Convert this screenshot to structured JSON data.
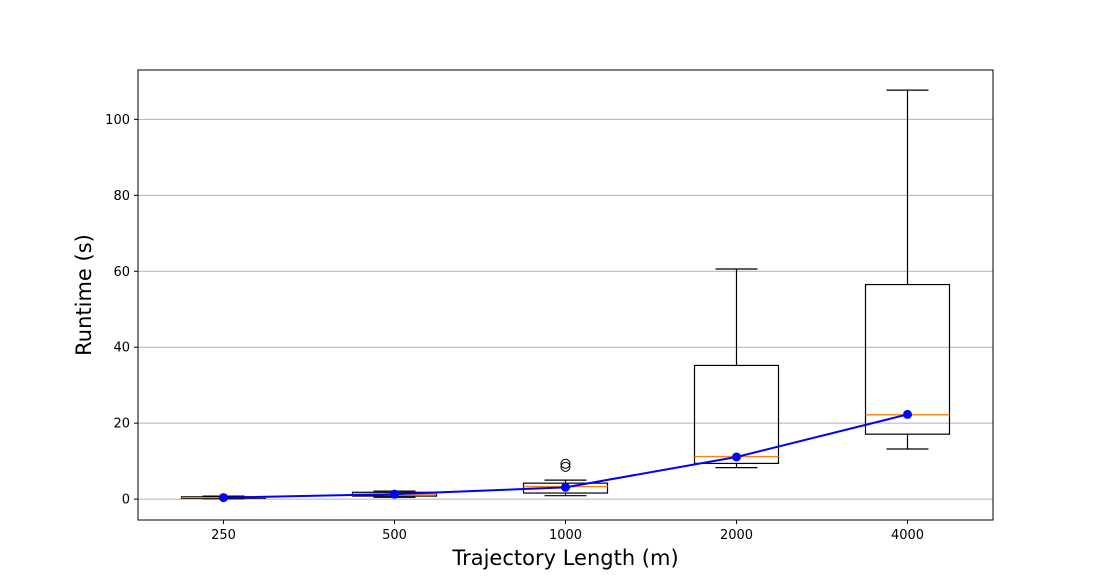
{
  "chart_data": {
    "type": "box",
    "xlabel": "Trajectory Length (m)",
    "ylabel": "Runtime (s)",
    "categories": [
      "250",
      "500",
      "1000",
      "2000",
      "4000"
    ],
    "ylim": [
      -5.5,
      113
    ],
    "yticks": [
      0,
      20,
      40,
      60,
      80,
      100
    ],
    "grid": "y",
    "boxes": [
      {
        "category": "250",
        "whislo": 0.1,
        "q1": 0.2,
        "median": 0.4,
        "q3": 0.6,
        "whishi": 0.8,
        "fliers": []
      },
      {
        "category": "500",
        "whislo": 0.5,
        "q1": 0.8,
        "median": 1.3,
        "q3": 1.8,
        "whishi": 2.1,
        "fliers": []
      },
      {
        "category": "1000",
        "whislo": 0.9,
        "q1": 1.6,
        "median": 3.3,
        "q3": 4.2,
        "whishi": 5.0,
        "fliers": [
          8.5,
          9.3
        ]
      },
      {
        "category": "2000",
        "whislo": 8.3,
        "q1": 9.4,
        "median": 11.2,
        "q3": 35.2,
        "whishi": 60.6,
        "fliers": []
      },
      {
        "category": "4000",
        "whislo": 13.2,
        "q1": 17.1,
        "median": 22.2,
        "q3": 56.5,
        "whishi": 107.7,
        "fliers": []
      }
    ],
    "mean_series": {
      "values": [
        0.4,
        1.3,
        3.1,
        11.1,
        22.3
      ],
      "color": "#0000ff"
    },
    "colors": {
      "box": "#000000",
      "median": "#ff7f0e",
      "mean": "#0000ff",
      "grid": "#b0b0b0"
    }
  }
}
